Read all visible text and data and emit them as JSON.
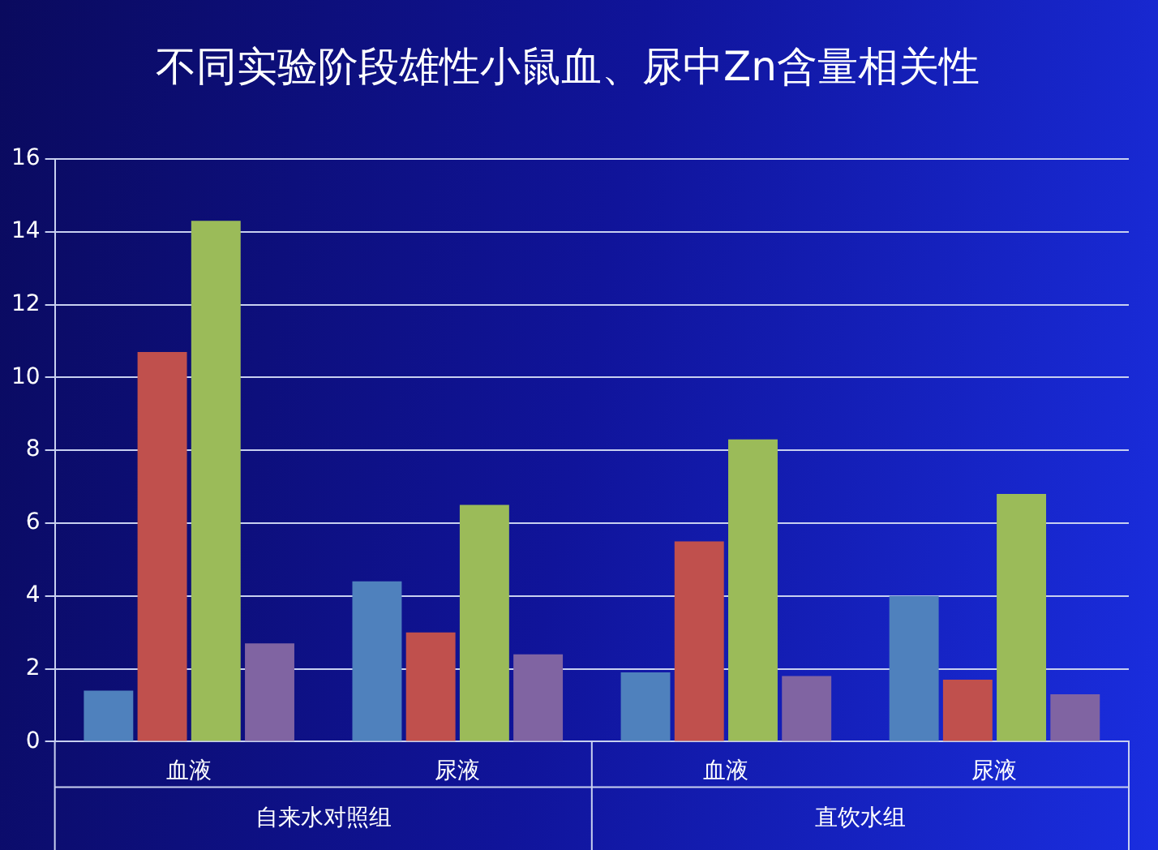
{
  "chart_data": {
    "type": "bar",
    "title": "不同实验阶段雄性小鼠血、尿中Zn含量相关性",
    "categories": [
      "血液",
      "尿液",
      "血液",
      "尿液"
    ],
    "series": [
      {
        "color": "#4f81bd",
        "values": [
          1.4,
          4.4,
          1.9,
          4.0
        ]
      },
      {
        "color": "#c0504d",
        "values": [
          10.7,
          3.0,
          5.5,
          1.7
        ]
      },
      {
        "color": "#9bbb59",
        "values": [
          14.3,
          6.5,
          8.3,
          6.8
        ]
      },
      {
        "color": "#8064a2",
        "values": [
          2.7,
          2.4,
          1.8,
          1.3
        ]
      }
    ],
    "ylim": [
      0,
      16
    ],
    "yticks": [
      0,
      2,
      4,
      6,
      8,
      10,
      12,
      14,
      16
    ],
    "grid": "y",
    "legend": false,
    "annotations": [
      "自来水对照组",
      "直饮水组"
    ]
  }
}
